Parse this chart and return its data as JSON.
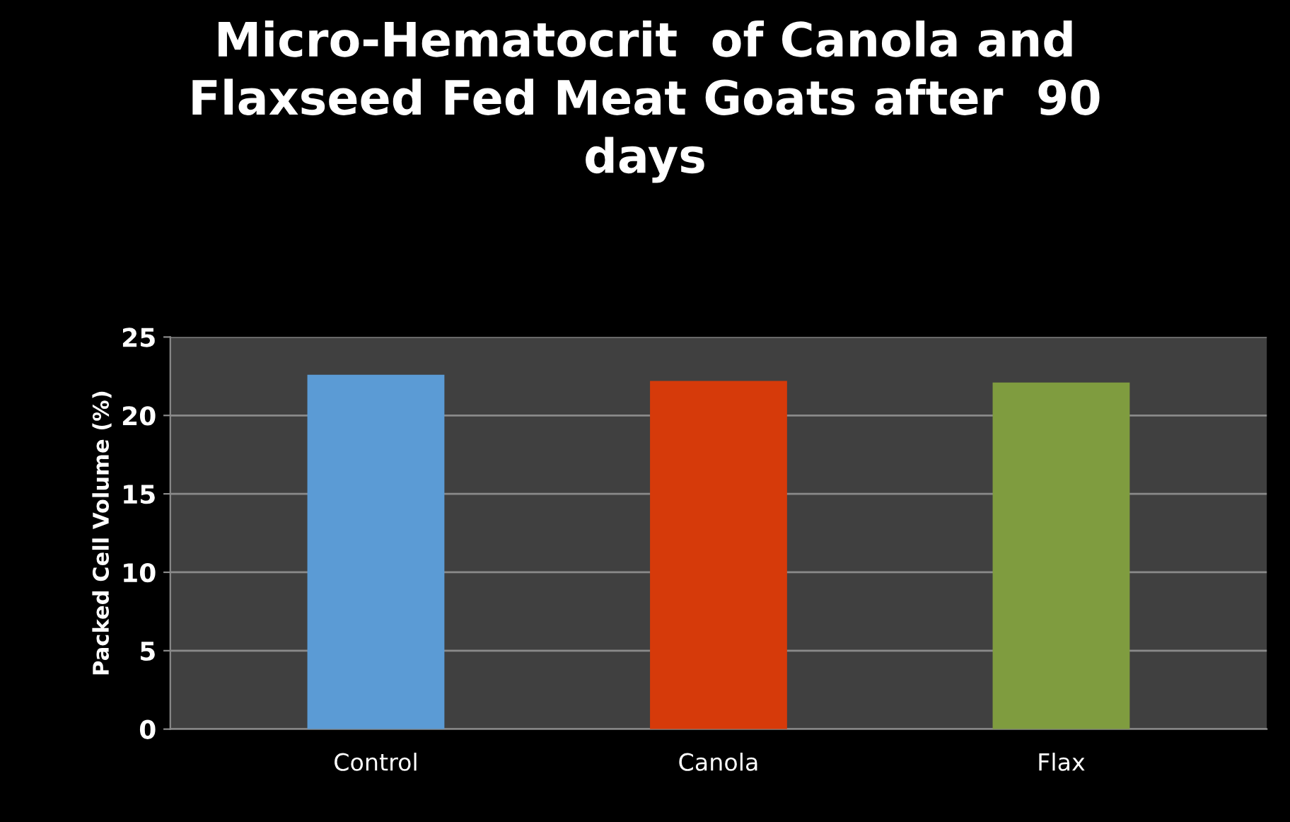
{
  "chart_data": {
    "type": "bar",
    "title": "Micro-Hematocrit  of Canola and\nFlaxseed Fed Meat Goats after  90\ndays",
    "ylabel": "Packed Cell Volume (%)",
    "categories": [
      "Control",
      "Canola",
      "Flax"
    ],
    "values": [
      22.6,
      22.2,
      22.1
    ],
    "colors": [
      "#5b9bd5",
      "#d63a0a",
      "#7f9c3f"
    ],
    "ylim": [
      0,
      25
    ],
    "yticks": [
      0,
      5,
      10,
      15,
      20,
      25
    ],
    "grid": "y"
  }
}
